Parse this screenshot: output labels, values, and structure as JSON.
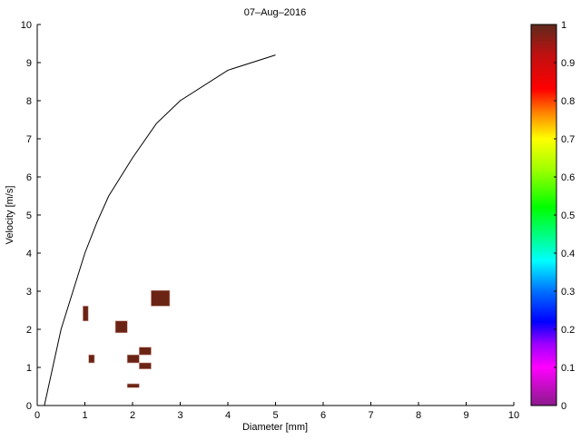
{
  "chart_data": {
    "type": "scatter",
    "title": "07–Aug–2016",
    "xlabel": "Diameter [mm]",
    "ylabel": "Velocity [m/s]",
    "xlim": [
      0,
      10
    ],
    "ylim": [
      0,
      10
    ],
    "xticks": [
      "0",
      "1",
      "2",
      "3",
      "4",
      "5",
      "6",
      "7",
      "8",
      "9",
      "10"
    ],
    "yticks": [
      "0",
      "1",
      "2",
      "3",
      "4",
      "5",
      "6",
      "7",
      "8",
      "9",
      "10"
    ],
    "grid": false,
    "curve": {
      "x": [
        0.15,
        0.5,
        1,
        1.25,
        1.5,
        2,
        2.5,
        3,
        4,
        5
      ],
      "y": [
        0,
        2,
        4,
        4.8,
        5.5,
        6.5,
        7.4,
        8,
        8.8,
        9.2
      ]
    },
    "cells": [
      {
        "x0": 2.39,
        "x1": 2.78,
        "y0": 2.61,
        "y1": 3.02,
        "value": 1
      },
      {
        "x0": 0.96,
        "x1": 1.07,
        "y0": 2.22,
        "y1": 2.61,
        "value": 1
      },
      {
        "x0": 1.64,
        "x1": 1.89,
        "y0": 1.91,
        "y1": 2.22,
        "value": 1
      },
      {
        "x0": 1.08,
        "x1": 1.2,
        "y0": 1.12,
        "y1": 1.33,
        "value": 1
      },
      {
        "x0": 1.89,
        "x1": 2.14,
        "y0": 1.12,
        "y1": 1.33,
        "value": 1
      },
      {
        "x0": 2.14,
        "x1": 2.39,
        "y0": 1.33,
        "y1": 1.53,
        "value": 1
      },
      {
        "x0": 2.14,
        "x1": 2.39,
        "y0": 0.96,
        "y1": 1.12,
        "value": 1
      },
      {
        "x0": 1.89,
        "x1": 2.14,
        "y0": 0.47,
        "y1": 0.57,
        "value": 1
      }
    ],
    "colorbar": {
      "range": [
        0,
        1
      ],
      "ticks": [
        "0",
        "0.1",
        "0.2",
        "0.3",
        "0.4",
        "0.5",
        "0.6",
        "0.7",
        "0.8",
        "0.9",
        "1"
      ],
      "cell_color": "#6b2414"
    }
  }
}
